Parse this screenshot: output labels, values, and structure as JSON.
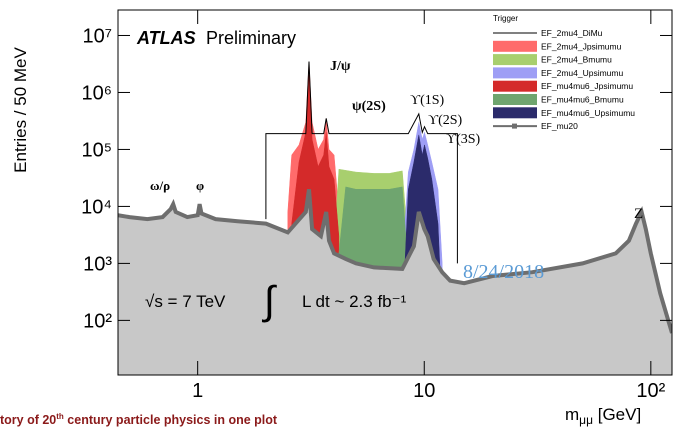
{
  "chart_data": {
    "type": "area",
    "log_x": true,
    "log_y": true,
    "y_label": "Entries / 50 MeV",
    "x_label": [
      "m",
      "μμ",
      " [GeV]"
    ],
    "xlim": [
      0.445,
      124
    ],
    "ylim": [
      11,
      28000000
    ],
    "xticks": [
      1,
      10,
      {
        "value": 100,
        "label": "10²"
      }
    ],
    "yticks": [
      {
        "value": 100,
        "label": "10²"
      },
      {
        "value": 1000,
        "label": "10³"
      },
      {
        "value": 10000,
        "label": "10⁴"
      },
      {
        "value": 100000,
        "label": "10⁵"
      },
      {
        "value": 1000000,
        "label": "10⁶"
      },
      {
        "value": 10000000,
        "label": "10⁷"
      }
    ],
    "legend_title": "Trigger",
    "legend_position": "upper right",
    "series": [
      {
        "name": "EF_2mu4_DiMu",
        "style": "line",
        "color": "#000000",
        "x": [
          2,
          2,
          3,
          3.1,
          3.2,
          3.6,
          3.69,
          3.8,
          4.2,
          8.5,
          9.46,
          9.8,
          10.02,
          10.36,
          11,
          14,
          14
        ],
        "values": [
          6000,
          190000,
          190000,
          3500000,
          190000,
          190000,
          350000,
          190000,
          190000,
          190000,
          420000,
          200000,
          250000,
          190000,
          190000,
          190000,
          1000
        ]
      },
      {
        "name": "EF_2mu4_Jpsimumu",
        "style": "area",
        "color": "#ff6b6b",
        "x": [
          2.5,
          2.6,
          2.8,
          3.0,
          3.1,
          3.2,
          3.4,
          3.6,
          3.69,
          3.8,
          4.0,
          4.2
        ],
        "values": [
          8000,
          80000,
          120000,
          300000,
          3500000,
          300000,
          100000,
          150000,
          350000,
          100000,
          80000,
          8000
        ]
      },
      {
        "name": "EF_2mu4_Bmumu",
        "style": "area",
        "color": "#a8cf6e",
        "x": [
          4.0,
          4.2,
          5,
          6,
          7,
          8,
          8.5
        ],
        "values": [
          2000,
          45000,
          40000,
          38000,
          38000,
          42000,
          2000
        ]
      },
      {
        "name": "EF_2mu4_Upsimumu",
        "style": "area",
        "color": "#9e9ef5",
        "x": [
          8,
          8.5,
          9,
          9.46,
          9.8,
          10.02,
          10.36,
          10.8,
          11.5,
          12
        ],
        "values": [
          1000,
          40000,
          100000,
          300000,
          150000,
          200000,
          120000,
          60000,
          20000,
          1000
        ]
      },
      {
        "name": "EF_mu4mu6_Jpsimumu",
        "style": "area",
        "color": "#d42a2a",
        "x": [
          2.6,
          2.8,
          3.0,
          3.1,
          3.2,
          3.4,
          3.6,
          3.69,
          3.8,
          4.0,
          4.2
        ],
        "values": [
          5000,
          60000,
          200000,
          2000000,
          150000,
          50000,
          80000,
          200000,
          50000,
          30000,
          3000
        ]
      },
      {
        "name": "EF_mu4mu6_Bmumu",
        "style": "area",
        "color": "#6fa56f",
        "x": [
          4.2,
          4.5,
          5,
          6,
          7,
          8,
          8.4
        ],
        "values": [
          1500,
          22000,
          20000,
          20000,
          20000,
          22000,
          1500
        ]
      },
      {
        "name": "EF_mu4mu6_Upsimumu",
        "style": "area",
        "color": "#2b2b6b",
        "x": [
          8.2,
          8.5,
          9,
          9.46,
          9.8,
          10.02,
          10.36,
          10.8,
          11.5,
          11.8
        ],
        "values": [
          800,
          20000,
          60000,
          180000,
          80000,
          120000,
          70000,
          30000,
          5000,
          500
        ]
      },
      {
        "name": "EF_mu20",
        "style": "area",
        "color": "#c8c8c8",
        "line_color": "#6e6e6e",
        "x": [
          0.445,
          0.5,
          0.6,
          0.7,
          0.76,
          0.78,
          0.8,
          0.9,
          1.0,
          1.02,
          1.04,
          1.2,
          1.5,
          2,
          2.5,
          3,
          3.1,
          3.2,
          3.5,
          3.69,
          3.8,
          4,
          4.5,
          5,
          6,
          8,
          9,
          9.46,
          10,
          10.36,
          11,
          12,
          13,
          15,
          20,
          30,
          50,
          70,
          80,
          86,
          91,
          95,
          100,
          110,
          124
        ],
        "values": [
          7000,
          6500,
          6000,
          6500,
          9000,
          11000,
          8000,
          6500,
          7000,
          11000,
          7500,
          6000,
          5500,
          5000,
          3500,
          8000,
          20000,
          4000,
          3000,
          8000,
          2500,
          1500,
          1200,
          1000,
          850,
          800,
          2000,
          8000,
          4000,
          3000,
          1200,
          700,
          500,
          450,
          600,
          700,
          1000,
          1500,
          2500,
          5000,
          8000,
          4000,
          1500,
          300,
          60
        ]
      }
    ],
    "annotations": [
      "ATLAS",
      "Preliminary",
      "J/ψ",
      "ψ(2S)",
      "ϒ(1S)",
      "ϒ(2S)",
      "ϒ(3S)",
      "ω/ρ",
      "φ",
      "Z",
      "√s = 7 TeV",
      "∫",
      "L dt ~ 2.3 fb⁻¹",
      "8/24/2018"
    ],
    "footer": [
      "tory of 20",
      "th",
      " century particle physics in one plot"
    ]
  }
}
